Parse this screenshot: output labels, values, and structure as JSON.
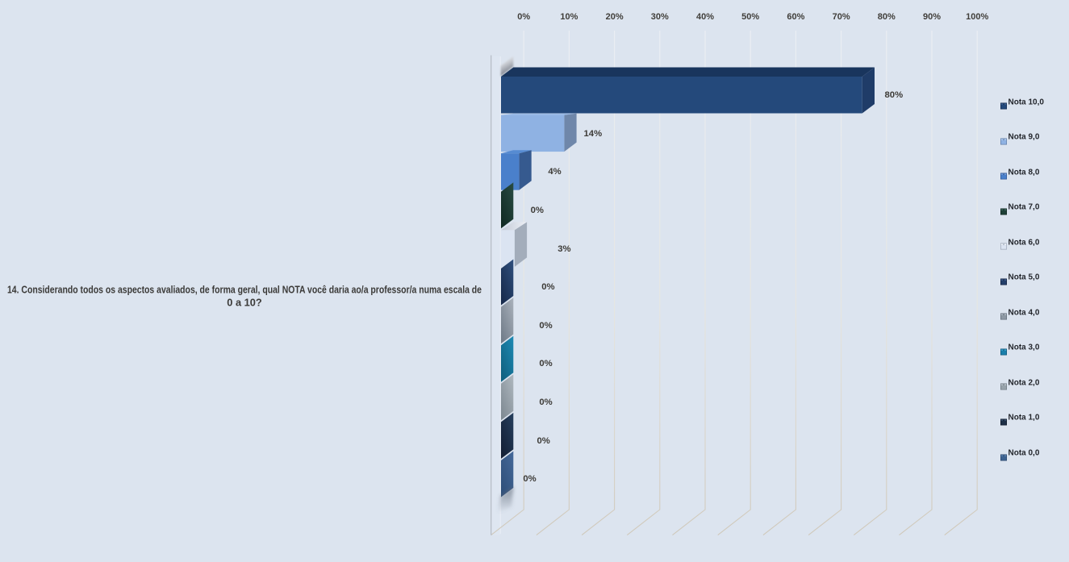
{
  "background_color": "#dce4ef",
  "chart_data": {
    "type": "bar",
    "style": "3d-horizontal-bar",
    "title": "14. Considerando todos os aspectos avaliados, de forma geral, qual NOTA você daria ao/a professor/a numa escala de 0 a 10?",
    "title_lines": [
      "14. Considerando todos os aspectos avaliados, de forma geral, qual NOTA você daria ao/a professor/a numa escala de",
      "0 a 10?"
    ],
    "categories": [
      "Nota 10,0",
      "Nota 9,0",
      "Nota 8,0",
      "Nota 7,0",
      "Nota 6,0",
      "Nota 5,0",
      "Nota 4,0",
      "Nota 3,0",
      "Nota 2,0",
      "Nota 1,0",
      "Nota 0,0"
    ],
    "values": [
      80,
      14,
      4,
      0,
      3,
      0,
      0,
      0,
      0,
      0,
      0
    ],
    "data_labels": [
      "80%",
      "14%",
      "4%",
      "0%",
      "3%",
      "0%",
      "0%",
      "0%",
      "0%",
      "0%",
      "0%"
    ],
    "x_axis": {
      "position": "top",
      "min": 0,
      "max": 100,
      "ticks": [
        "0%",
        "10%",
        "20%",
        "30%",
        "40%",
        "50%",
        "60%",
        "70%",
        "80%",
        "90%",
        "100%"
      ]
    },
    "grid": true,
    "legend_position": "right",
    "legend_items": [
      "Nota 10,0",
      "Nota 9,0",
      "Nota 8,0",
      "Nota 7,0",
      "Nota 6,0",
      "Nota 5,0",
      "Nota 4,0",
      "Nota 3,0",
      "Nota 2,0",
      "Nota 1,0",
      "Nota 0,0"
    ],
    "series_colors": [
      {
        "front": "#24497B",
        "top": "#19355D",
        "cap": "#1F3C68",
        "cap_light": "#2E5287",
        "cap_dark": "#16294F",
        "key_light": "#3A5F92",
        "key_dark": "#122A4E"
      },
      {
        "front": "#8FB2E3",
        "top": "#9ABAE7",
        "cap": "#6F87AA",
        "cap_light": "#8299B9",
        "cap_dark": "#647C9F",
        "key_light": "#AECAF0",
        "key_dark": "#5F7CA6"
      },
      {
        "front": "#4A80CB",
        "top": "#568BD2",
        "cap": "#365A8F",
        "cap_light": "#3F67A0",
        "cap_dark": "#2E5081",
        "key_light": "#6D9BDC",
        "key_dark": "#2F5490"
      },
      {
        "front": "#1F4138",
        "top": "#294C43",
        "cap": "#1F4138",
        "cap_light": "#294C43",
        "cap_dark": "#112A23",
        "key_light": "#39645A",
        "key_dark": "#0F261F"
      },
      {
        "front": "#DBE4F2",
        "top": "#E9EDF6",
        "top_grad": [
          "#C3CAD6",
          "#EDF0F6"
        ],
        "cap": "#A3ADBB",
        "cap_light": "#B9C0CC",
        "cap_dark": "#8E99A8",
        "key_light": "#EFF3FA",
        "key_dark": "#9AA5B5"
      },
      {
        "front": "#24406B",
        "top": "#30507E",
        "cap": "#24406B",
        "cap_light": "#30507E",
        "cap_dark": "#172A4B",
        "key_light": "#3D5C8C",
        "key_dark": "#121F3D"
      },
      {
        "front": "#8D98A4",
        "top": "#AAB2BC",
        "cap": "#8D98A4",
        "cap_light": "#AAB2BC",
        "cap_dark": "#717C89",
        "key_light": "#AEB8C2",
        "key_dark": "#5F6A77"
      },
      {
        "front": "#1A7FAB",
        "top": "#1E8AB4",
        "cap": "#1A7FAB",
        "cap_light": "#1E8AB4",
        "cap_dark": "#0F607F",
        "key_light": "#36A0CC",
        "key_dark": "#0D5375"
      },
      {
        "front": "#98A3AB",
        "top": "#AFB8BF",
        "cap": "#98A3AB",
        "cap_light": "#AFB8BF",
        "cap_dark": "#7F8A93",
        "key_light": "#B8C2C9",
        "key_dark": "#6B767F"
      },
      {
        "front": "#1E3048",
        "top": "#27405E",
        "cap": "#1E3048",
        "cap_light": "#27405E",
        "cap_dark": "#131F35",
        "key_light": "#37506E",
        "key_dark": "#0D1627"
      },
      {
        "front": "#3E6391",
        "top": "#45699A",
        "cap": "#3E6391",
        "cap_light": "#45699A",
        "cap_dark": "#2F4F79",
        "key_light": "#5A81B0",
        "key_dark": "#27446A"
      }
    ],
    "text_colors": {
      "axis_ticks": "#403e3a",
      "data_labels": "#3d3b37",
      "axis_title": "#3b3a38",
      "legend": "#23262c"
    },
    "gridline_colors": {
      "wall_top": "#eceff4",
      "wall_mid": "#e7e6e0",
      "floor": "#cfc8ba"
    },
    "wall_colors": {
      "side_wall": "#dee6f1",
      "axis_line": "#b4bac4",
      "wall_edge": "#eef2f7"
    }
  }
}
